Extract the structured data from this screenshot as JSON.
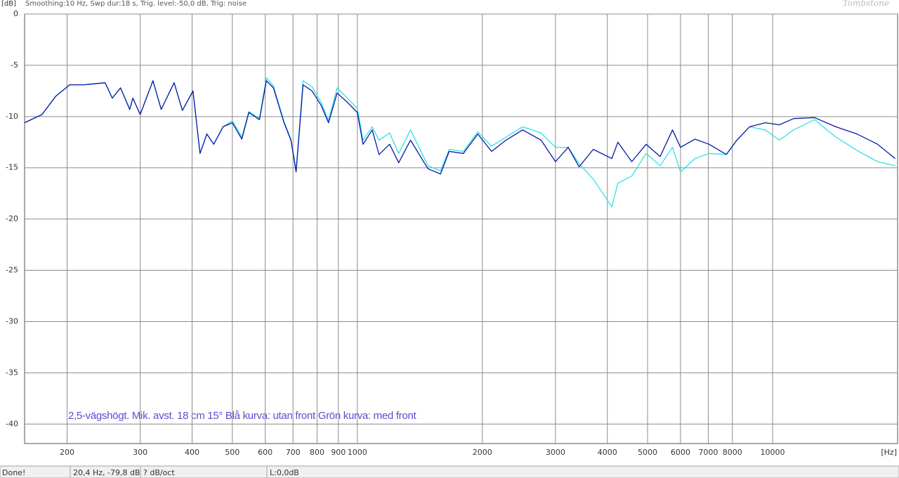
{
  "chart_data": {
    "type": "line",
    "header": "Smoothing:10 Hz, Swp dur:18 s, Trig. level:-50,0 dB, Trig: noise",
    "watermark": "Tombstone",
    "y_axis_label": "[dB]",
    "x_axis_label": "[Hz]",
    "annotation": "2,5-vägshögt. Mik. avst. 18 cm 15° Blå kurva: utan front  Grön kurva: med front",
    "x_scale": "log",
    "grid": true,
    "xlim": [
      158,
      20000
    ],
    "ylim": [
      -41.9,
      0
    ],
    "xticks": [
      200,
      300,
      400,
      500,
      600,
      700,
      800,
      900,
      1000,
      2000,
      3000,
      4000,
      5000,
      6000,
      7000,
      8000,
      10000
    ],
    "yticks": [
      0,
      -5,
      -10,
      -15,
      -20,
      -25,
      -30,
      -35,
      -40
    ],
    "x": [
      158,
      174,
      188,
      203,
      220,
      247,
      257,
      269,
      283,
      288,
      300,
      322,
      337,
      362,
      379,
      402,
      418,
      434,
      451,
      475,
      500,
      527,
      548,
      581,
      604,
      628,
      666,
      692,
      712,
      740,
      778,
      818,
      852,
      894,
      946,
      1000,
      1032,
      1086,
      1128,
      1196,
      1258,
      1343,
      1480,
      1586,
      1664,
      1800,
      1950,
      2105,
      2280,
      2500,
      2770,
      3000,
      3220,
      3420,
      3700,
      4100,
      4240,
      4580,
      4960,
      5360,
      5740,
      6000,
      6500,
      7030,
      7740,
      8200,
      8800,
      9600,
      10380,
      11240,
      12620,
      14200,
      15960,
      17900,
      19740
    ],
    "series": [
      {
        "color": "#2ee3e3",
        "values": [
          -10.6,
          -9.8,
          -8.0,
          -6.9,
          -6.9,
          -6.7,
          -8.2,
          -7.2,
          -9.3,
          -8.2,
          -9.8,
          -6.5,
          -9.3,
          -6.7,
          -9.4,
          -7.5,
          -13.6,
          -11.7,
          -12.7,
          -11.0,
          -10.4,
          -12.0,
          -9.5,
          -10.2,
          -6.2,
          -7.0,
          -10.5,
          -12.2,
          -15.2,
          -6.5,
          -7.1,
          -8.6,
          -10.4,
          -7.2,
          -8.2,
          -9.2,
          -12.3,
          -11.0,
          -12.3,
          -11.6,
          -13.6,
          -11.3,
          -14.8,
          -15.3,
          -13.2,
          -13.4,
          -11.5,
          -12.9,
          -12.0,
          -11.0,
          -11.6,
          -13.0,
          -13.0,
          -14.6,
          -16.1,
          -18.8,
          -16.5,
          -15.8,
          -13.6,
          -14.8,
          -13.0,
          -15.4,
          -14.1,
          -13.6,
          -13.7,
          -12.3,
          -11.0,
          -11.3,
          -12.3,
          -11.3,
          -10.3,
          -12.0,
          -13.3,
          -14.4,
          -14.8
        ]
      },
      {
        "color": "#0a18a8",
        "values": [
          -10.6,
          -9.8,
          -8.0,
          -6.9,
          -6.9,
          -6.7,
          -8.2,
          -7.2,
          -9.3,
          -8.2,
          -9.8,
          -6.5,
          -9.3,
          -6.7,
          -9.4,
          -7.5,
          -13.6,
          -11.7,
          -12.7,
          -11.0,
          -10.6,
          -12.2,
          -9.6,
          -10.3,
          -6.5,
          -7.2,
          -10.6,
          -12.3,
          -15.4,
          -6.9,
          -7.5,
          -8.9,
          -10.6,
          -7.7,
          -8.6,
          -9.6,
          -12.7,
          -11.3,
          -13.7,
          -12.7,
          -14.5,
          -12.3,
          -15.1,
          -15.6,
          -13.4,
          -13.6,
          -11.7,
          -13.4,
          -12.3,
          -11.3,
          -12.3,
          -14.4,
          -13.0,
          -14.9,
          -13.2,
          -14.1,
          -12.5,
          -14.4,
          -12.7,
          -13.9,
          -11.3,
          -13.0,
          -12.2,
          -12.7,
          -13.7,
          -12.3,
          -11.0,
          -10.6,
          -10.8,
          -10.2,
          -10.1,
          -11.0,
          -11.7,
          -12.7,
          -14.1
        ]
      }
    ]
  },
  "status_bar": {
    "cells": [
      "Done!",
      "20,4 Hz, -79,8 dB",
      "? dB/oct",
      "L:0,0dB"
    ]
  }
}
